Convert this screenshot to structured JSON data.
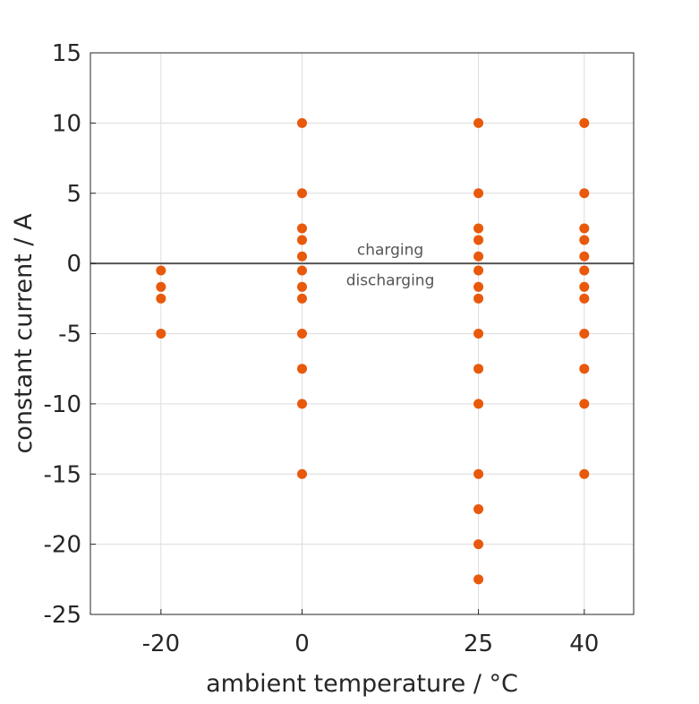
{
  "chart_data": {
    "type": "scatter",
    "title": "",
    "xlabel": "ambient temperature / °C",
    "ylabel": "constant current / A",
    "xlim": [
      -30,
      47
    ],
    "ylim": [
      -25,
      15
    ],
    "x_ticks": [
      -20,
      0,
      25,
      40
    ],
    "y_ticks": [
      15,
      10,
      5,
      0,
      -5,
      -10,
      -15,
      -20,
      -25
    ],
    "grid": true,
    "marker_color": "#e8590c",
    "zero_line_color": "#555555",
    "annotations": [
      {
        "text": "charging",
        "x": 12.5,
        "y": 0.8
      },
      {
        "text": "discharging",
        "x": 12.5,
        "y": -0.8
      }
    ],
    "series": [
      {
        "name": "-20 °C",
        "x": -20,
        "values": [
          -0.5,
          -1.67,
          -2.5,
          -5
        ]
      },
      {
        "name": "0 °C",
        "x": 0,
        "values": [
          10,
          5,
          2.5,
          1.67,
          0.5,
          -0.5,
          -1.67,
          -2.5,
          -5,
          -7.5,
          -10,
          -15
        ]
      },
      {
        "name": "25 °C",
        "x": 25,
        "values": [
          10,
          5,
          2.5,
          1.67,
          0.5,
          -0.5,
          -1.67,
          -2.5,
          -5,
          -7.5,
          -10,
          -15,
          -17.5,
          -20,
          -22.5
        ]
      },
      {
        "name": "40 °C",
        "x": 40,
        "values": [
          10,
          5,
          2.5,
          1.67,
          0.5,
          -0.5,
          -1.67,
          -2.5,
          -5,
          -7.5,
          -10,
          -15
        ]
      }
    ]
  }
}
